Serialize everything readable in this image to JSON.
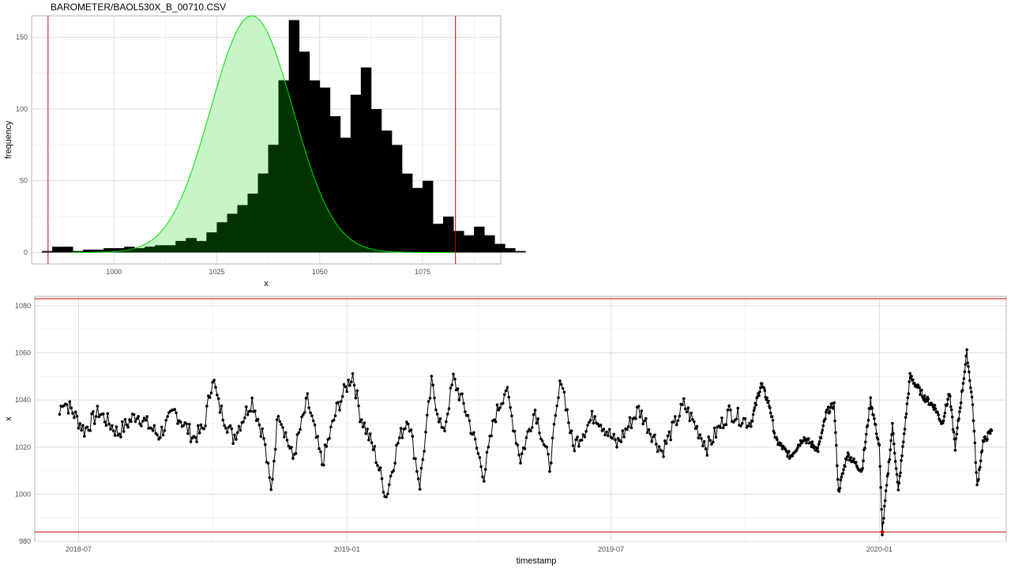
{
  "page": {
    "title": "BAROMETER/BAOL530X_B_00710.CSV"
  },
  "chart_data": [
    {
      "type": "bar",
      "title": "BAROMETER/BAOL530X_B_00710.CSV",
      "xlabel": "x",
      "ylabel": "frequency",
      "xlim": [
        980,
        1094
      ],
      "ylim": [
        -8,
        165
      ],
      "xticks": [
        1000,
        1025,
        1050,
        1075
      ],
      "yticks": [
        0,
        50,
        100,
        150
      ],
      "grid": true,
      "bin_width": 2.5,
      "bin_start": 990,
      "counts": [
        1,
        2,
        2,
        3,
        3,
        4,
        3,
        4,
        5,
        5,
        8,
        10,
        8,
        14,
        21,
        27,
        33,
        41,
        55,
        75,
        120,
        162,
        140,
        120,
        115,
        95,
        80,
        110,
        129,
        100,
        85,
        75,
        55,
        45,
        50,
        20,
        25,
        15,
        12,
        18,
        12,
        6,
        3,
        1
      ],
      "extra_bars": [
        {
          "x": 983.75,
          "count": 1
        },
        {
          "x": 986.25,
          "count": 4
        },
        {
          "x": 988.75,
          "count": 4
        }
      ],
      "series": [
        {
          "kind": "histogram",
          "color": "#000000"
        },
        {
          "kind": "density",
          "mean": 1033.5,
          "sd": 10,
          "peak": 165,
          "line_color": "#00e000",
          "fill_color": "#c8f5c8"
        }
      ],
      "vlines": [
        {
          "x": 984,
          "color": "#cc0000"
        },
        {
          "x": 1083,
          "color": "#cc0000"
        }
      ]
    },
    {
      "type": "line",
      "xlabel": "timestamp",
      "ylabel": "x",
      "xlim": [
        "2018-06-01",
        "2020-03-28"
      ],
      "ylim": [
        980,
        1084
      ],
      "xticks": [
        "2018-07-01",
        "2019-01-01",
        "2019-07-01",
        "2020-01-01"
      ],
      "xtick_labels": [
        "2018-07",
        "2019-01",
        "2019-07",
        "2020-01"
      ],
      "yticks": [
        980,
        1000,
        1020,
        1040,
        1060,
        1080
      ],
      "grid": true,
      "series": [
        {
          "color": "#000000",
          "marker": "circle"
        }
      ],
      "hlines": [
        {
          "y": 1083,
          "color": "#cc0000"
        },
        {
          "y": 984,
          "color": "#cc0000"
        }
      ],
      "anchors": [
        [
          "2018-06-18",
          1034
        ],
        [
          "2018-06-20",
          1040
        ],
        [
          "2018-06-26",
          1036
        ],
        [
          "2018-07-05",
          1027
        ],
        [
          "2018-07-15",
          1035
        ],
        [
          "2018-07-28",
          1026
        ],
        [
          "2018-08-10",
          1034
        ],
        [
          "2018-08-25",
          1025
        ],
        [
          "2018-09-05",
          1035
        ],
        [
          "2018-09-18",
          1024
        ],
        [
          "2018-09-25",
          1028
        ],
        [
          "2018-10-01",
          1050
        ],
        [
          "2018-10-05",
          1038
        ],
        [
          "2018-10-15",
          1024
        ],
        [
          "2018-10-28",
          1040
        ],
        [
          "2018-11-05",
          1024
        ],
        [
          "2018-11-10",
          1001
        ],
        [
          "2018-11-15",
          1036
        ],
        [
          "2018-11-25",
          1015
        ],
        [
          "2018-12-05",
          1040
        ],
        [
          "2018-12-15",
          1013
        ],
        [
          "2018-12-25",
          1036
        ],
        [
          "2019-01-01",
          1046
        ],
        [
          "2019-01-05",
          1051
        ],
        [
          "2019-01-10",
          1034
        ],
        [
          "2019-01-20",
          1018
        ],
        [
          "2019-01-28",
          999
        ],
        [
          "2019-02-05",
          1022
        ],
        [
          "2019-02-12",
          1033
        ],
        [
          "2019-02-20",
          1004
        ],
        [
          "2019-02-28",
          1047
        ],
        [
          "2019-03-08",
          1025
        ],
        [
          "2019-03-15",
          1049
        ],
        [
          "2019-03-25",
          1033
        ],
        [
          "2019-04-05",
          1008
        ],
        [
          "2019-04-12",
          1032
        ],
        [
          "2019-04-20",
          1045
        ],
        [
          "2019-04-30",
          1015
        ],
        [
          "2019-05-10",
          1036
        ],
        [
          "2019-05-20",
          1012
        ],
        [
          "2019-05-28",
          1050
        ],
        [
          "2019-06-05",
          1020
        ],
        [
          "2019-06-20",
          1034
        ],
        [
          "2019-07-05",
          1021
        ],
        [
          "2019-07-20",
          1036
        ],
        [
          "2019-08-05",
          1018
        ],
        [
          "2019-08-20",
          1038
        ],
        [
          "2019-09-05",
          1020
        ],
        [
          "2019-09-20",
          1035
        ],
        [
          "2019-10-05",
          1030
        ],
        [
          "2019-10-12",
          1047
        ],
        [
          "2019-10-18",
          1037
        ],
        [
          "2019-10-22",
          1023
        ],
        [
          "2019-11-01",
          1016
        ],
        [
          "2019-11-10",
          1024
        ],
        [
          "2019-11-20",
          1019
        ],
        [
          "2019-11-26",
          1035
        ],
        [
          "2019-12-01",
          1038
        ],
        [
          "2019-12-04",
          1001
        ],
        [
          "2019-12-10",
          1017
        ],
        [
          "2019-12-20",
          1010
        ],
        [
          "2019-12-26",
          1040
        ],
        [
          "2020-01-01",
          1020
        ],
        [
          "2020-01-03",
          984
        ],
        [
          "2020-01-10",
          1029
        ],
        [
          "2020-01-14",
          1001
        ],
        [
          "2020-01-22",
          1050
        ],
        [
          "2020-02-01",
          1041
        ],
        [
          "2020-02-08",
          1037
        ],
        [
          "2020-02-13",
          1030
        ],
        [
          "2020-02-18",
          1043
        ],
        [
          "2020-02-22",
          1020
        ],
        [
          "2020-03-01",
          1060
        ],
        [
          "2020-03-05",
          1038
        ],
        [
          "2020-03-08",
          1003
        ],
        [
          "2020-03-12",
          1022
        ],
        [
          "2020-03-18",
          1027
        ]
      ],
      "highlight_points": [
        {
          "x": "2020-01-03",
          "y": 984,
          "color": "#cc0000"
        }
      ]
    }
  ]
}
